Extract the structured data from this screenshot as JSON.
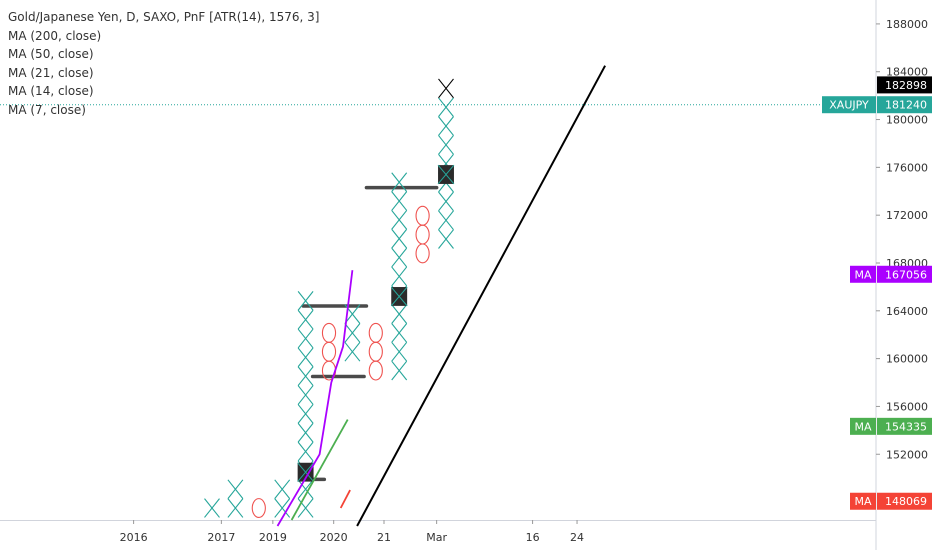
{
  "legend": {
    "title": "Gold/Japanese Yen, D, SAXO, PnF [ATR(14), 1576, 3]",
    "items": [
      "MA (200, close)",
      "MA (50, close)",
      "MA (21, close)",
      "MA (14, close)",
      "MA (7, close)"
    ]
  },
  "colors": {
    "x_box": "#26a69a",
    "o_box": "#ef5350",
    "ma_purple": "#aa00ff",
    "ma_green": "#4caf50",
    "ma_red": "#f44336",
    "ma_black": "#000000",
    "price_line": "#26a69a",
    "tag_black": "#000000",
    "tag_teal": "#26a69a",
    "tag_purple": "#aa00ff",
    "tag_green": "#4caf50",
    "tag_red": "#f44336"
  },
  "chart_data": {
    "type": "pnf",
    "box_size": 1576,
    "reversal": 3,
    "ylim": [
      146500,
      190000
    ],
    "y_ticks": [
      152000,
      156000,
      160000,
      164000,
      168000,
      172000,
      176000,
      180000,
      184000,
      188000
    ],
    "x_ticks": [
      {
        "label": "2016",
        "col": -3.35
      },
      {
        "label": "2017",
        "col": 0.4
      },
      {
        "label": "2019",
        "col": 2.6
      },
      {
        "label": "2020",
        "col": 5.2
      },
      {
        "label": "21",
        "col": 7.35
      },
      {
        "label": "Mar",
        "col": 9.6
      },
      {
        "label": "16",
        "col": 13.7
      },
      {
        "label": "24",
        "col": 15.6
      }
    ],
    "columns": [
      {
        "type": "X",
        "low": 147500,
        "high": 147500
      },
      {
        "type": "X",
        "low": 147500,
        "high": 149076
      },
      {
        "type": "O",
        "low": 147500,
        "high": 147500
      },
      {
        "type": "X",
        "low": 147500,
        "high": 149076
      },
      {
        "type": "X",
        "low": 147500,
        "high": 165000
      },
      {
        "type": "O",
        "low": 159000,
        "high": 162000
      },
      {
        "type": "X",
        "low": 160576,
        "high": 163728
      },
      {
        "type": "O",
        "low": 159000,
        "high": 162000
      },
      {
        "type": "X",
        "low": 159000,
        "high": 174000
      },
      {
        "type": "O",
        "low": 168800,
        "high": 171952
      },
      {
        "type": "X",
        "low": 170000,
        "high": 182898
      }
    ],
    "highlighted_boxes": [
      {
        "col": 4,
        "y": 150500
      },
      {
        "col": 8,
        "y": 165200
      },
      {
        "col": 10,
        "y": 175400
      }
    ],
    "level_bars": [
      {
        "y": 149900,
        "from": 3.9,
        "to": 4.8
      },
      {
        "y": 164400,
        "from": 3.9,
        "to": 6.6
      },
      {
        "y": 158500,
        "from": 4.3,
        "to": 6.5
      },
      {
        "y": 174300,
        "from": 6.6,
        "to": 9.6
      }
    ],
    "ma_lines": [
      {
        "name": "MA (200, close)",
        "color": "#000000",
        "points": [
          [
            6.2,
            146000
          ],
          [
            16.8,
            184500
          ]
        ]
      },
      {
        "name": "MA (50, close)",
        "color": "#aa00ff",
        "points": [
          [
            2.8,
            146000
          ],
          [
            4.6,
            152000
          ],
          [
            5.1,
            158000
          ],
          [
            5.6,
            161000
          ],
          [
            6.0,
            167400
          ]
        ]
      },
      {
        "name": "MA (21, close)",
        "color": "#4caf50",
        "points": [
          [
            3.4,
            146500
          ],
          [
            5.8,
            154900
          ]
        ]
      },
      {
        "name": "MA (14, close)",
        "color": "#f44336",
        "points": [
          [
            5.5,
            147500
          ],
          [
            5.9,
            149000
          ]
        ]
      }
    ],
    "price_line": 181240,
    "price_tags": [
      {
        "label": "182898",
        "value": 182898,
        "color": "#000000",
        "prefix": ""
      },
      {
        "label": "181240",
        "value": 181240,
        "color": "#26a69a",
        "prefix": "XAUJPY"
      },
      {
        "label": "167056",
        "value": 167056,
        "color": "#aa00ff",
        "prefix": "MA"
      },
      {
        "label": "154335",
        "value": 154335,
        "color": "#4caf50",
        "prefix": "MA"
      },
      {
        "label": "148069",
        "value": 148069,
        "color": "#f44336",
        "prefix": "MA"
      }
    ]
  }
}
